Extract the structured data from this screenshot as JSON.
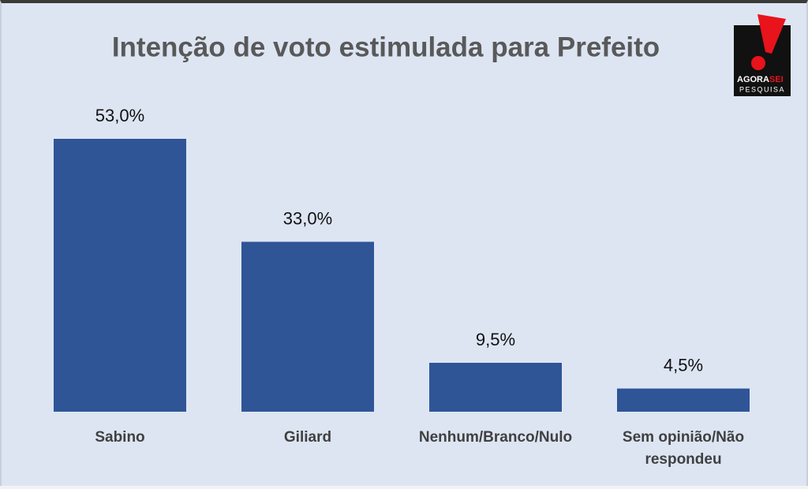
{
  "chart_data": {
    "type": "bar",
    "title": "Intenção de voto estimulada para Prefeito",
    "categories": [
      "Sabino",
      "Giliard",
      "Nenhum/Branco/Nulo",
      "Sem opinião/Não respondeu"
    ],
    "values": [
      53,
      33,
      9.5,
      4.5
    ],
    "value_labels": [
      "53,0%",
      "33,0%",
      "9,5%",
      "4,5%"
    ],
    "color": "#2f5597"
  },
  "logo": {
    "word1": "AGORA",
    "word2": "SEI",
    "tagline": "PESQUISA"
  }
}
